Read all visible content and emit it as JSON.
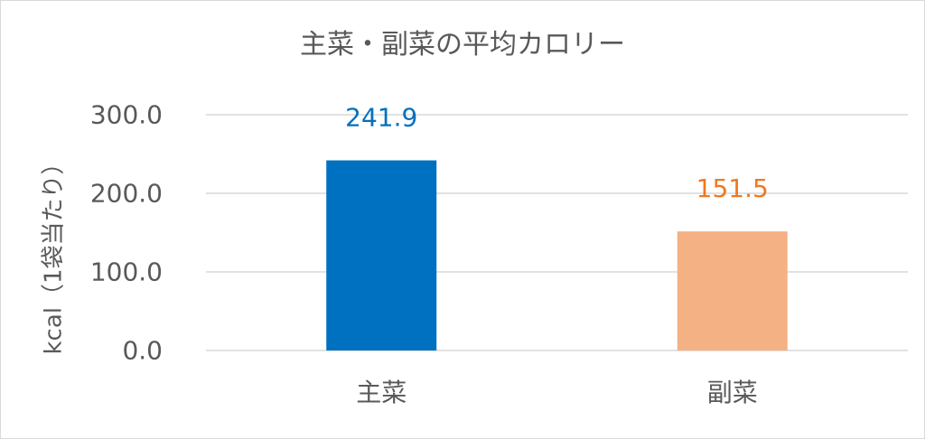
{
  "chart_data": {
    "type": "bar",
    "title": "主菜・副菜の平均カロリー",
    "ylabel": "kcal（1袋当たり）",
    "xlabel": "",
    "categories": [
      "主菜",
      "副菜"
    ],
    "values": [
      241.9,
      151.5
    ],
    "value_labels": [
      "241.9",
      "151.5"
    ],
    "colors": [
      "#0070C0",
      "#F4B183"
    ],
    "label_colors": [
      "#0070C0",
      "#F07820"
    ],
    "ylim": [
      0,
      300
    ],
    "yticks": [
      "0.0",
      "100.0",
      "200.0",
      "300.0"
    ],
    "grid": true,
    "legend": "none"
  }
}
